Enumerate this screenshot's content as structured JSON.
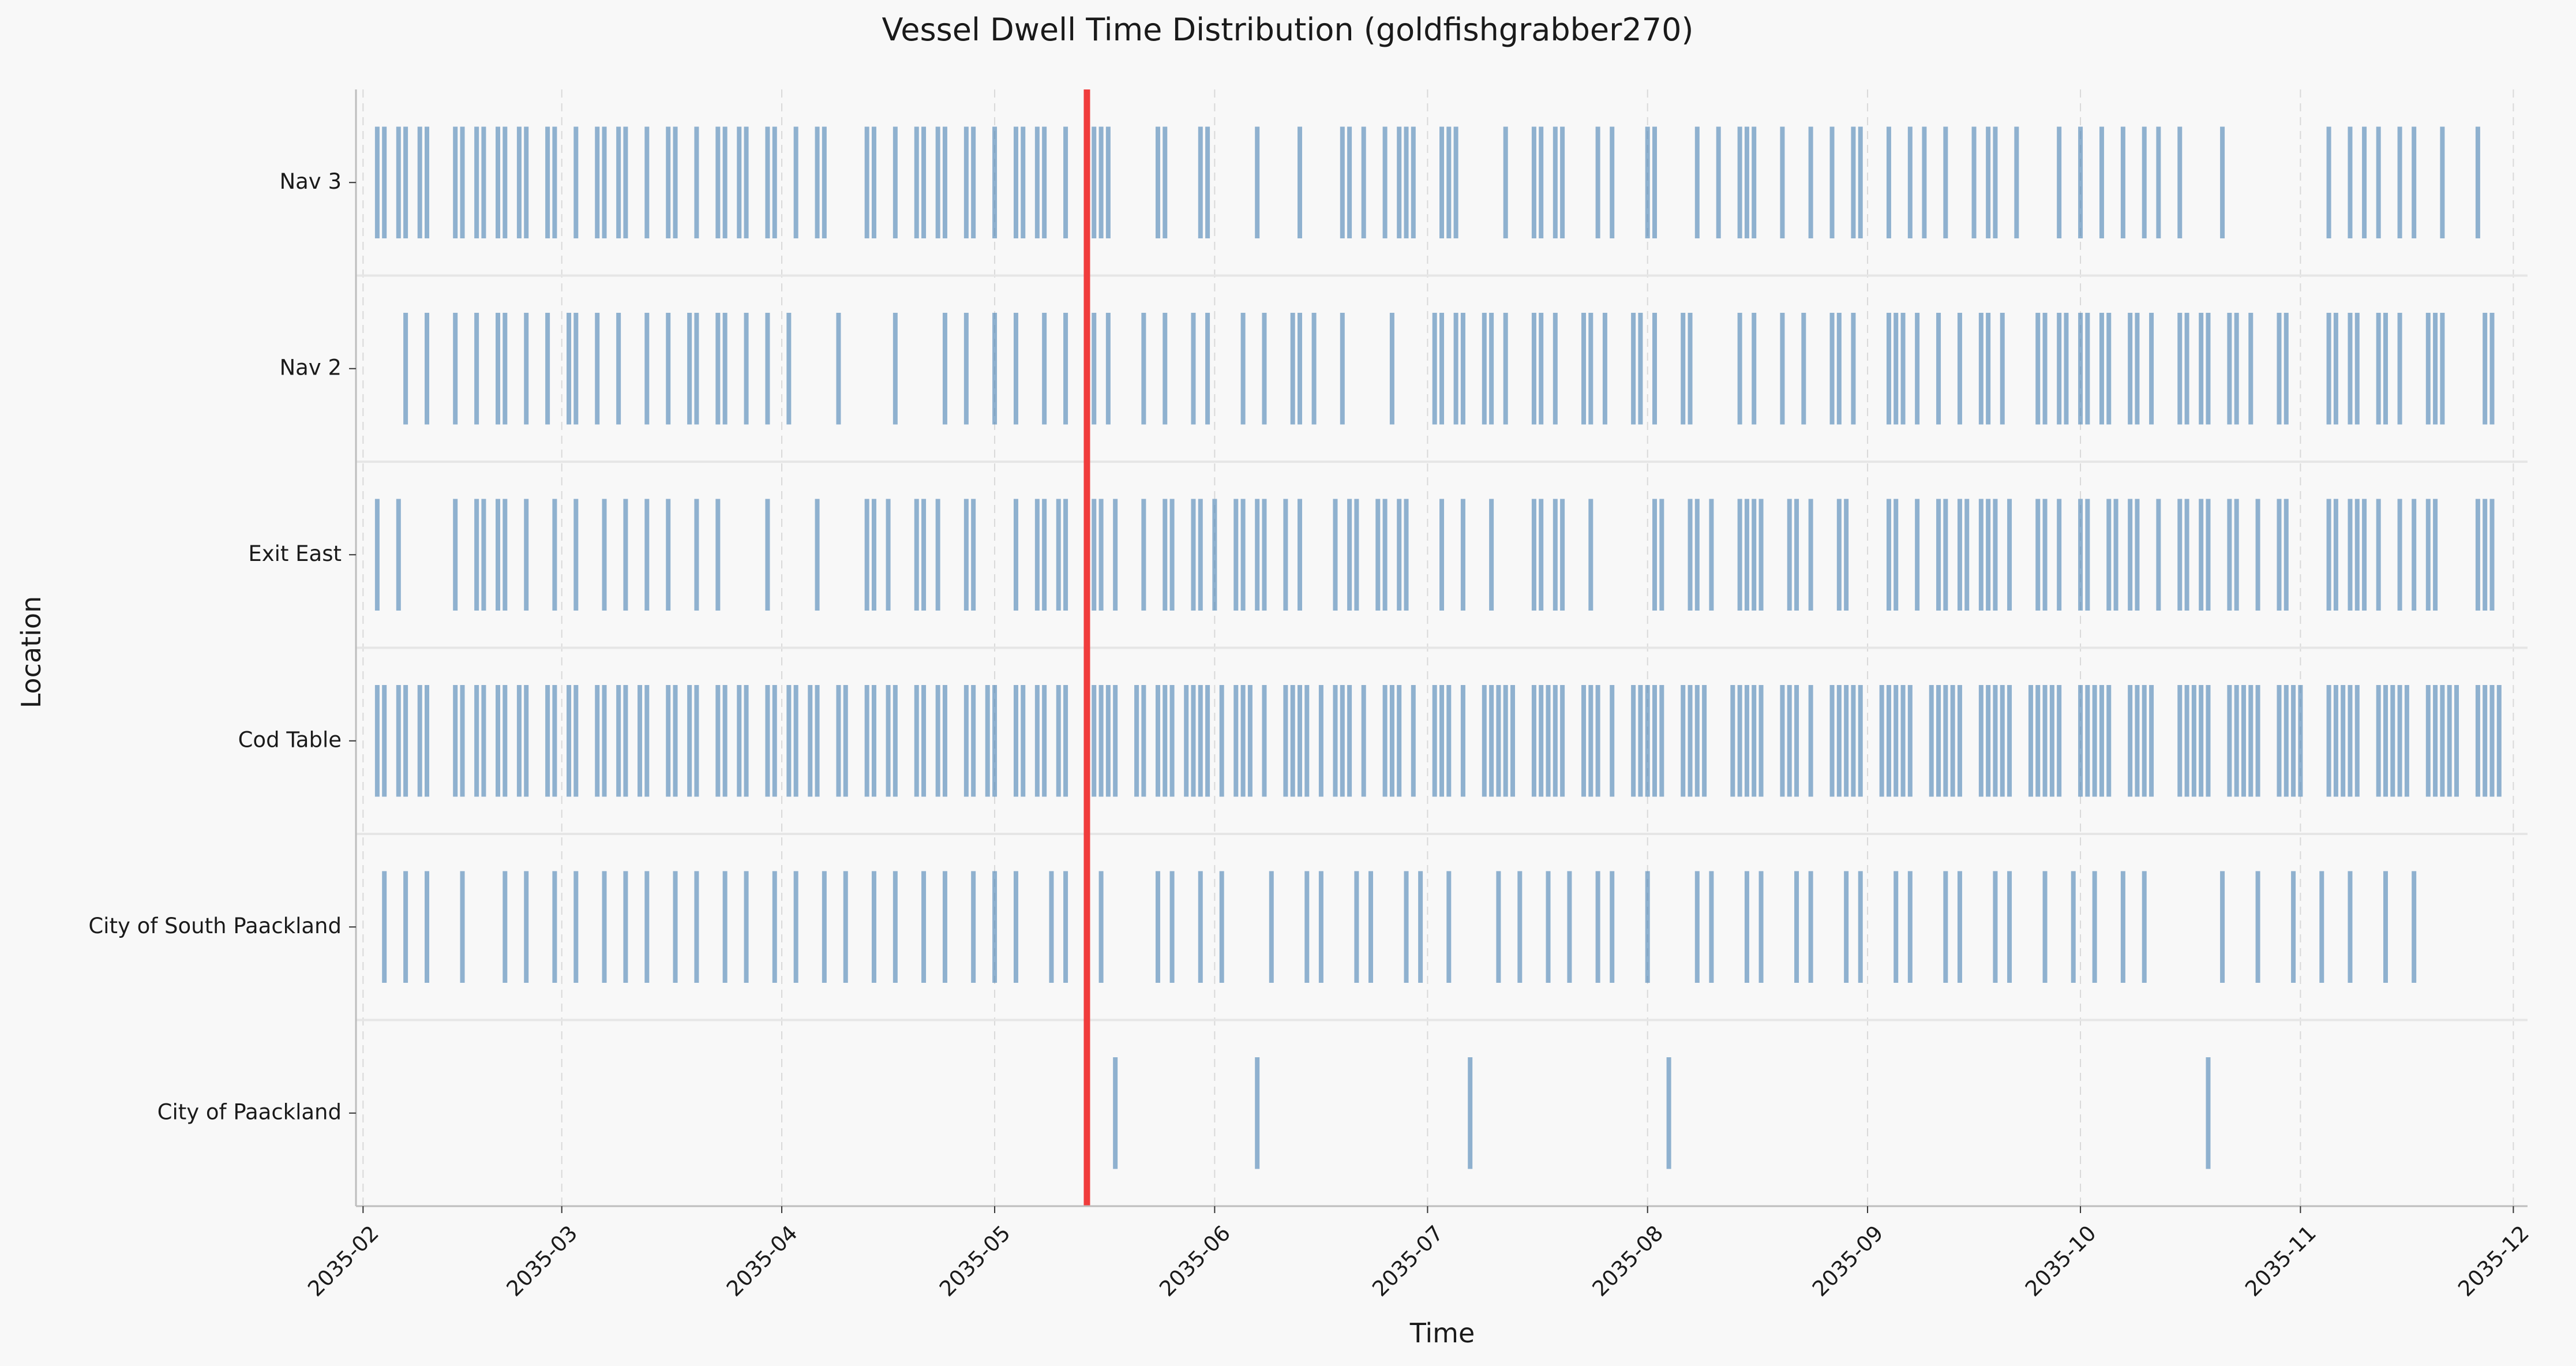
{
  "chart_data": {
    "type": "event-timeline",
    "title": "Vessel Dwell Time Distribution (goldfishgrabber270)",
    "xlabel": "Time",
    "ylabel": "Location",
    "x_ticks": [
      "2035-02",
      "2035-03",
      "2035-04",
      "2035-05",
      "2035-06",
      "2035-07",
      "2035-08",
      "2035-09",
      "2035-10",
      "2035-11",
      "2035-12"
    ],
    "x_range": [
      "2035-01-31",
      "2035-12-03"
    ],
    "categories": [
      "City of Paackland",
      "City of South Paackland",
      "Cod Table",
      "Exit East",
      "Nav 2",
      "Nav 3"
    ],
    "marker": {
      "date": "2035-05-14",
      "color": "#f03c3c"
    },
    "bar_color": "#4a82b4",
    "grid": "dashed-vertical-at-ticks",
    "series": [
      {
        "name": "City of Paackland",
        "events": [
          "2035-05-18",
          "2035-06-07",
          "2035-07-07",
          "2035-08-04",
          "2035-10-19"
        ]
      },
      {
        "name": "City of South Paackland",
        "events": [
          "2035-02-04",
          "2035-02-07",
          "2035-02-10",
          "2035-02-15",
          "2035-02-21",
          "2035-02-24",
          "2035-02-28",
          "2035-03-03",
          "2035-03-07",
          "2035-03-10",
          "2035-03-13",
          "2035-03-17",
          "2035-03-20",
          "2035-03-24",
          "2035-03-27",
          "2035-03-31",
          "2035-04-03",
          "2035-04-07",
          "2035-04-10",
          "2035-04-14",
          "2035-04-17",
          "2035-04-21",
          "2035-04-24",
          "2035-04-28",
          "2035-05-01",
          "2035-05-04",
          "2035-05-09",
          "2035-05-11",
          "2035-05-16",
          "2035-05-24",
          "2035-05-26",
          "2035-05-30",
          "2035-06-02",
          "2035-06-09",
          "2035-06-14",
          "2035-06-16",
          "2035-06-21",
          "2035-06-23",
          "2035-06-28",
          "2035-06-30",
          "2035-07-04",
          "2035-07-11",
          "2035-07-14",
          "2035-07-18",
          "2035-07-21",
          "2035-07-25",
          "2035-07-27",
          "2035-08-01",
          "2035-08-08",
          "2035-08-10",
          "2035-08-15",
          "2035-08-17",
          "2035-08-22",
          "2035-08-24",
          "2035-08-29",
          "2035-08-31",
          "2035-09-05",
          "2035-09-07",
          "2035-09-12",
          "2035-09-14",
          "2035-09-19",
          "2035-09-21",
          "2035-09-26",
          "2035-09-30",
          "2035-10-03",
          "2035-10-07",
          "2035-10-10",
          "2035-10-21",
          "2035-10-26",
          "2035-10-31",
          "2035-11-04",
          "2035-11-08",
          "2035-11-13",
          "2035-11-17"
        ]
      },
      {
        "name": "Cod Table",
        "events": [
          "2035-02-03",
          "2035-02-04",
          "2035-02-06",
          "2035-02-07",
          "2035-02-09",
          "2035-02-10",
          "2035-02-14",
          "2035-02-15",
          "2035-02-17",
          "2035-02-18",
          "2035-02-20",
          "2035-02-21",
          "2035-02-23",
          "2035-02-24",
          "2035-02-27",
          "2035-02-28",
          "2035-03-02",
          "2035-03-03",
          "2035-03-06",
          "2035-03-07",
          "2035-03-09",
          "2035-03-10",
          "2035-03-12",
          "2035-03-13",
          "2035-03-16",
          "2035-03-17",
          "2035-03-19",
          "2035-03-20",
          "2035-03-23",
          "2035-03-24",
          "2035-03-26",
          "2035-03-27",
          "2035-03-30",
          "2035-03-31",
          "2035-04-02",
          "2035-04-03",
          "2035-04-05",
          "2035-04-06",
          "2035-04-09",
          "2035-04-10",
          "2035-04-13",
          "2035-04-14",
          "2035-04-16",
          "2035-04-17",
          "2035-04-20",
          "2035-04-21",
          "2035-04-23",
          "2035-04-24",
          "2035-04-27",
          "2035-04-28",
          "2035-04-30",
          "2035-05-01",
          "2035-05-04",
          "2035-05-05",
          "2035-05-07",
          "2035-05-08",
          "2035-05-10",
          "2035-05-11",
          "2035-05-15",
          "2035-05-16",
          "2035-05-17",
          "2035-05-18",
          "2035-05-21",
          "2035-05-22",
          "2035-05-24",
          "2035-05-25",
          "2035-05-26",
          "2035-05-28",
          "2035-05-29",
          "2035-05-30",
          "2035-05-31",
          "2035-06-02",
          "2035-06-04",
          "2035-06-05",
          "2035-06-06",
          "2035-06-08",
          "2035-06-11",
          "2035-06-12",
          "2035-06-13",
          "2035-06-14",
          "2035-06-16",
          "2035-06-18",
          "2035-06-19",
          "2035-06-20",
          "2035-06-22",
          "2035-06-25",
          "2035-06-26",
          "2035-06-27",
          "2035-06-29",
          "2035-07-02",
          "2035-07-03",
          "2035-07-04",
          "2035-07-06",
          "2035-07-09",
          "2035-07-10",
          "2035-07-11",
          "2035-07-12",
          "2035-07-13",
          "2035-07-16",
          "2035-07-17",
          "2035-07-18",
          "2035-07-19",
          "2035-07-20",
          "2035-07-23",
          "2035-07-24",
          "2035-07-25",
          "2035-07-27",
          "2035-07-30",
          "2035-07-31",
          "2035-08-01",
          "2035-08-02",
          "2035-08-03",
          "2035-08-06",
          "2035-08-07",
          "2035-08-08",
          "2035-08-09",
          "2035-08-13",
          "2035-08-14",
          "2035-08-15",
          "2035-08-16",
          "2035-08-17",
          "2035-08-20",
          "2035-08-21",
          "2035-08-22",
          "2035-08-24",
          "2035-08-27",
          "2035-08-28",
          "2035-08-29",
          "2035-08-30",
          "2035-08-31",
          "2035-09-03",
          "2035-09-04",
          "2035-09-05",
          "2035-09-06",
          "2035-09-07",
          "2035-09-10",
          "2035-09-11",
          "2035-09-12",
          "2035-09-13",
          "2035-09-14",
          "2035-09-17",
          "2035-09-18",
          "2035-09-19",
          "2035-09-20",
          "2035-09-21",
          "2035-09-24",
          "2035-09-25",
          "2035-09-26",
          "2035-09-27",
          "2035-09-28",
          "2035-10-01",
          "2035-10-02",
          "2035-10-03",
          "2035-10-04",
          "2035-10-05",
          "2035-10-08",
          "2035-10-09",
          "2035-10-10",
          "2035-10-11",
          "2035-10-15",
          "2035-10-16",
          "2035-10-17",
          "2035-10-18",
          "2035-10-19",
          "2035-10-22",
          "2035-10-23",
          "2035-10-24",
          "2035-10-25",
          "2035-10-26",
          "2035-10-29",
          "2035-10-30",
          "2035-10-31",
          "2035-11-01",
          "2035-11-05",
          "2035-11-06",
          "2035-11-07",
          "2035-11-08",
          "2035-11-09",
          "2035-11-12",
          "2035-11-13",
          "2035-11-14",
          "2035-11-15",
          "2035-11-16",
          "2035-11-19",
          "2035-11-20",
          "2035-11-21",
          "2035-11-22",
          "2035-11-23",
          "2035-11-26",
          "2035-11-27",
          "2035-11-28",
          "2035-11-29"
        ]
      },
      {
        "name": "Exit East",
        "events": [
          "2035-02-03",
          "2035-02-06",
          "2035-02-14",
          "2035-02-17",
          "2035-02-18",
          "2035-02-20",
          "2035-02-21",
          "2035-02-24",
          "2035-02-28",
          "2035-03-03",
          "2035-03-07",
          "2035-03-10",
          "2035-03-13",
          "2035-03-16",
          "2035-03-20",
          "2035-03-23",
          "2035-03-30",
          "2035-04-06",
          "2035-04-13",
          "2035-04-14",
          "2035-04-16",
          "2035-04-20",
          "2035-04-21",
          "2035-04-23",
          "2035-04-27",
          "2035-04-28",
          "2035-05-04",
          "2035-05-07",
          "2035-05-08",
          "2035-05-10",
          "2035-05-11",
          "2035-05-15",
          "2035-05-16",
          "2035-05-18",
          "2035-05-22",
          "2035-05-25",
          "2035-05-26",
          "2035-05-29",
          "2035-05-30",
          "2035-06-01",
          "2035-06-04",
          "2035-06-05",
          "2035-06-07",
          "2035-06-08",
          "2035-06-11",
          "2035-06-13",
          "2035-06-18",
          "2035-06-20",
          "2035-06-21",
          "2035-06-24",
          "2035-06-25",
          "2035-06-27",
          "2035-06-28",
          "2035-07-03",
          "2035-07-06",
          "2035-07-10",
          "2035-07-16",
          "2035-07-17",
          "2035-07-19",
          "2035-07-20",
          "2035-07-24",
          "2035-08-02",
          "2035-08-03",
          "2035-08-07",
          "2035-08-08",
          "2035-08-10",
          "2035-08-14",
          "2035-08-15",
          "2035-08-16",
          "2035-08-17",
          "2035-08-21",
          "2035-08-22",
          "2035-08-24",
          "2035-08-28",
          "2035-08-29",
          "2035-09-04",
          "2035-09-05",
          "2035-09-08",
          "2035-09-11",
          "2035-09-12",
          "2035-09-14",
          "2035-09-15",
          "2035-09-17",
          "2035-09-18",
          "2035-09-19",
          "2035-09-21",
          "2035-09-25",
          "2035-09-26",
          "2035-09-28",
          "2035-10-01",
          "2035-10-02",
          "2035-10-05",
          "2035-10-06",
          "2035-10-08",
          "2035-10-09",
          "2035-10-12",
          "2035-10-15",
          "2035-10-16",
          "2035-10-18",
          "2035-10-19",
          "2035-10-22",
          "2035-10-23",
          "2035-10-26",
          "2035-10-29",
          "2035-10-30",
          "2035-11-05",
          "2035-11-06",
          "2035-11-08",
          "2035-11-09",
          "2035-11-10",
          "2035-11-12",
          "2035-11-15",
          "2035-11-17",
          "2035-11-19",
          "2035-11-20",
          "2035-11-26",
          "2035-11-27",
          "2035-11-28"
        ]
      },
      {
        "name": "Nav 2",
        "events": [
          "2035-02-07",
          "2035-02-10",
          "2035-02-14",
          "2035-02-17",
          "2035-02-20",
          "2035-02-21",
          "2035-02-24",
          "2035-02-27",
          "2035-03-02",
          "2035-03-03",
          "2035-03-06",
          "2035-03-09",
          "2035-03-13",
          "2035-03-16",
          "2035-03-19",
          "2035-03-20",
          "2035-03-23",
          "2035-03-24",
          "2035-03-27",
          "2035-03-30",
          "2035-04-02",
          "2035-04-09",
          "2035-04-17",
          "2035-04-24",
          "2035-04-27",
          "2035-05-01",
          "2035-05-04",
          "2035-05-08",
          "2035-05-11",
          "2035-05-15",
          "2035-05-17",
          "2035-05-22",
          "2035-05-25",
          "2035-05-29",
          "2035-05-31",
          "2035-06-05",
          "2035-06-08",
          "2035-06-12",
          "2035-06-13",
          "2035-06-15",
          "2035-06-19",
          "2035-06-26",
          "2035-07-02",
          "2035-07-03",
          "2035-07-05",
          "2035-07-06",
          "2035-07-09",
          "2035-07-10",
          "2035-07-12",
          "2035-07-16",
          "2035-07-17",
          "2035-07-19",
          "2035-07-23",
          "2035-07-24",
          "2035-07-26",
          "2035-07-30",
          "2035-07-31",
          "2035-08-02",
          "2035-08-06",
          "2035-08-07",
          "2035-08-14",
          "2035-08-16",
          "2035-08-20",
          "2035-08-23",
          "2035-08-27",
          "2035-08-28",
          "2035-08-30",
          "2035-09-04",
          "2035-09-05",
          "2035-09-06",
          "2035-09-08",
          "2035-09-11",
          "2035-09-14",
          "2035-09-17",
          "2035-09-18",
          "2035-09-20",
          "2035-09-25",
          "2035-09-26",
          "2035-09-28",
          "2035-09-29",
          "2035-10-01",
          "2035-10-02",
          "2035-10-04",
          "2035-10-05",
          "2035-10-08",
          "2035-10-09",
          "2035-10-11",
          "2035-10-15",
          "2035-10-16",
          "2035-10-18",
          "2035-10-19",
          "2035-10-22",
          "2035-10-23",
          "2035-10-25",
          "2035-10-29",
          "2035-10-30",
          "2035-11-05",
          "2035-11-06",
          "2035-11-08",
          "2035-11-09",
          "2035-11-12",
          "2035-11-13",
          "2035-11-15",
          "2035-11-19",
          "2035-11-20",
          "2035-11-21",
          "2035-11-27",
          "2035-11-28"
        ]
      },
      {
        "name": "Nav 3",
        "events": [
          "2035-02-03",
          "2035-02-04",
          "2035-02-06",
          "2035-02-07",
          "2035-02-09",
          "2035-02-10",
          "2035-02-14",
          "2035-02-15",
          "2035-02-17",
          "2035-02-18",
          "2035-02-20",
          "2035-02-21",
          "2035-02-23",
          "2035-02-24",
          "2035-02-27",
          "2035-02-28",
          "2035-03-03",
          "2035-03-06",
          "2035-03-07",
          "2035-03-09",
          "2035-03-10",
          "2035-03-13",
          "2035-03-16",
          "2035-03-17",
          "2035-03-20",
          "2035-03-23",
          "2035-03-24",
          "2035-03-26",
          "2035-03-27",
          "2035-03-30",
          "2035-03-31",
          "2035-04-03",
          "2035-04-06",
          "2035-04-07",
          "2035-04-13",
          "2035-04-14",
          "2035-04-17",
          "2035-04-20",
          "2035-04-21",
          "2035-04-23",
          "2035-04-24",
          "2035-04-27",
          "2035-04-28",
          "2035-05-01",
          "2035-05-04",
          "2035-05-05",
          "2035-05-07",
          "2035-05-08",
          "2035-05-11",
          "2035-05-15",
          "2035-05-16",
          "2035-05-17",
          "2035-05-24",
          "2035-05-25",
          "2035-05-30",
          "2035-05-31",
          "2035-06-07",
          "2035-06-13",
          "2035-06-19",
          "2035-06-20",
          "2035-06-22",
          "2035-06-25",
          "2035-06-27",
          "2035-06-28",
          "2035-06-29",
          "2035-07-03",
          "2035-07-04",
          "2035-07-05",
          "2035-07-12",
          "2035-07-16",
          "2035-07-17",
          "2035-07-19",
          "2035-07-20",
          "2035-07-25",
          "2035-07-27",
          "2035-08-01",
          "2035-08-02",
          "2035-08-08",
          "2035-08-11",
          "2035-08-14",
          "2035-08-15",
          "2035-08-16",
          "2035-08-20",
          "2035-08-24",
          "2035-08-27",
          "2035-08-30",
          "2035-08-31",
          "2035-09-04",
          "2035-09-07",
          "2035-09-09",
          "2035-09-12",
          "2035-09-16",
          "2035-09-18",
          "2035-09-19",
          "2035-09-22",
          "2035-09-28",
          "2035-10-01",
          "2035-10-04",
          "2035-10-07",
          "2035-10-10",
          "2035-10-12",
          "2035-10-15",
          "2035-10-21",
          "2035-11-05",
          "2035-11-08",
          "2035-11-10",
          "2035-11-12",
          "2035-11-15",
          "2035-11-17",
          "2035-11-21",
          "2035-11-26"
        ]
      }
    ]
  }
}
